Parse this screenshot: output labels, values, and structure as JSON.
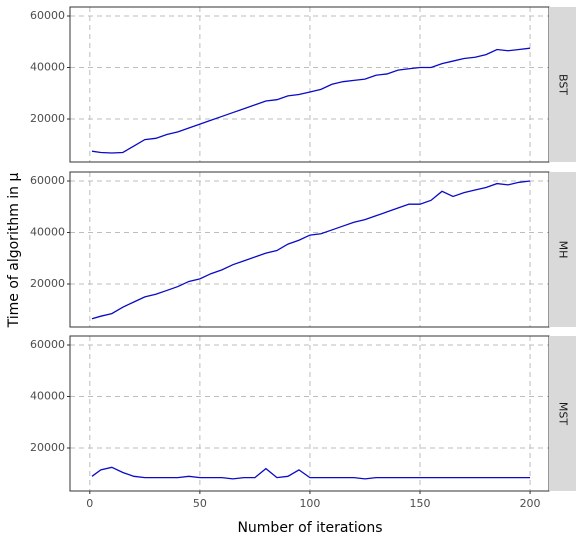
{
  "chart_data": {
    "type": "line",
    "x_label": "Number of iterations",
    "y_label": "Time of algorithm in μ",
    "x": [
      1,
      5,
      10,
      15,
      20,
      25,
      30,
      35,
      40,
      45,
      50,
      55,
      60,
      65,
      70,
      75,
      80,
      85,
      90,
      95,
      100,
      105,
      110,
      115,
      120,
      125,
      130,
      135,
      140,
      145,
      150,
      155,
      160,
      165,
      170,
      175,
      180,
      185,
      190,
      195,
      200
    ],
    "series": [
      {
        "name": "BST",
        "color": "#0a0ac8",
        "values": [
          7500,
          7000,
          6800,
          7000,
          9500,
          12000,
          12500,
          14000,
          15000,
          16500,
          18000,
          19500,
          21000,
          22500,
          24000,
          25500,
          27000,
          27500,
          29000,
          29500,
          30500,
          31500,
          33500,
          34500,
          35000,
          35500,
          37000,
          37500,
          39000,
          39500,
          40000,
          40000,
          41500,
          42500,
          43500,
          44000,
          45000,
          47000,
          46500,
          47000,
          47500
        ]
      },
      {
        "name": "MH",
        "color": "#0a0ac8",
        "values": [
          6500,
          7500,
          8500,
          11000,
          13000,
          15000,
          16000,
          17500,
          19000,
          21000,
          22000,
          24000,
          25500,
          27500,
          29000,
          30500,
          32000,
          33000,
          35500,
          37000,
          39000,
          39500,
          41000,
          42500,
          44000,
          45000,
          46500,
          48000,
          49500,
          51000,
          51000,
          52500,
          56000,
          54000,
          55500,
          56500,
          57500,
          59000,
          58500,
          59500,
          60000
        ]
      },
      {
        "name": "MST",
        "color": "#0a0ac8",
        "values": [
          9000,
          11500,
          12500,
          10500,
          9000,
          8500,
          8500,
          8500,
          8500,
          9000,
          8500,
          8500,
          8500,
          8000,
          8500,
          8500,
          12000,
          8500,
          9000,
          11500,
          8500,
          8500,
          8500,
          8500,
          8500,
          8000,
          8500,
          8500,
          8500,
          8500,
          8500,
          8500,
          8500,
          8500,
          8500,
          8500,
          8500,
          8500,
          8500,
          8500,
          8500
        ]
      }
    ],
    "xlim": [
      -9,
      208.6
    ],
    "xticks": [
      0,
      50,
      100,
      150,
      200
    ],
    "ylim": [
      3300,
      63500
    ],
    "yticks": [
      20000,
      40000,
      60000
    ],
    "grid": true
  }
}
